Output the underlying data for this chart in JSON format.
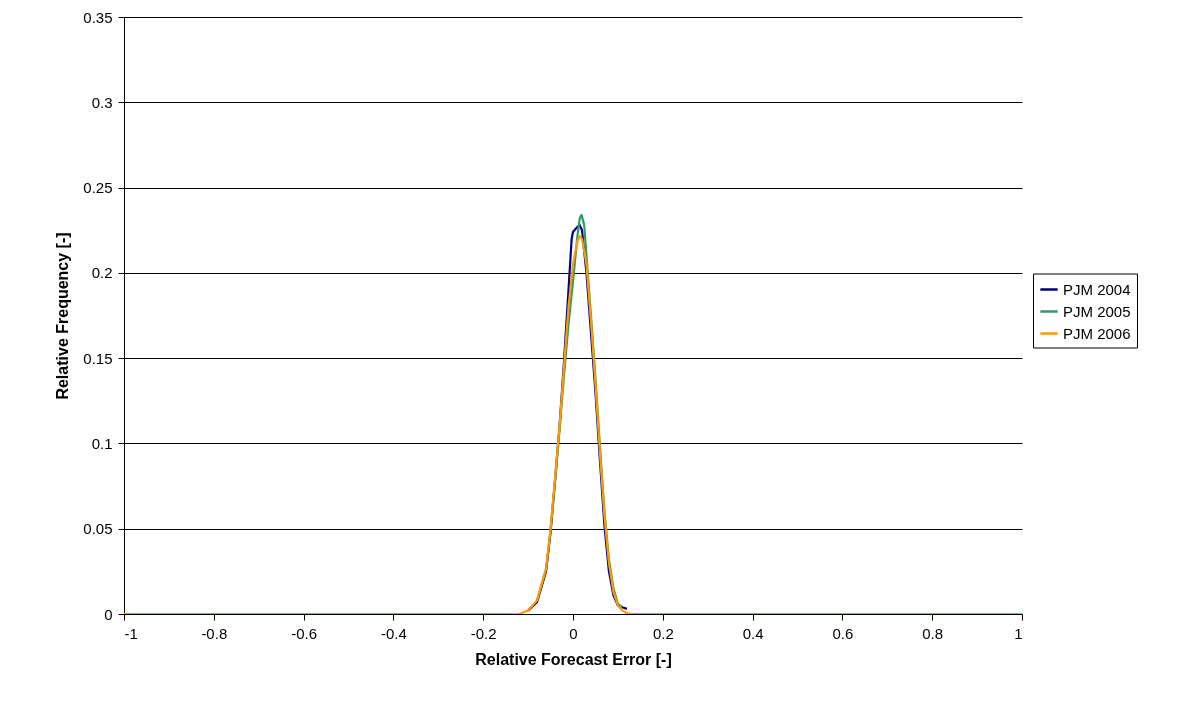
{
  "chart_data": {
    "type": "line",
    "xlabel": "Relative Forecast Error [-]",
    "ylabel": "Relative Frequency [-]",
    "xlim": [
      -1,
      1
    ],
    "xticks": [
      -1,
      -0.8,
      -0.6,
      -0.4,
      -0.2,
      0,
      0.2,
      0.4,
      0.6,
      0.8,
      1
    ],
    "ylim": [
      0,
      0.35
    ],
    "yticks": [
      0,
      0.05,
      0.1,
      0.15,
      0.2,
      0.25,
      0.3,
      0.35
    ],
    "grid": "y",
    "legend": "right",
    "marker": "none",
    "line_style": "solid",
    "series": [
      {
        "name": "PJM 2004",
        "color": "#000080",
        "x": [
          -0.1,
          -0.08,
          -0.06,
          -0.05,
          -0.04,
          -0.03,
          -0.02,
          -0.01,
          -0.003,
          0,
          0.01,
          0.015,
          0.02,
          0.03,
          0.04,
          0.05,
          0.06,
          0.07,
          0.08,
          0.09,
          0.1,
          0.11,
          0.12
        ],
        "values": [
          0.002,
          0.007,
          0.025,
          0.048,
          0.078,
          0.11,
          0.148,
          0.19,
          0.22,
          0.224,
          0.227,
          0.228,
          0.225,
          0.2,
          0.165,
          0.13,
          0.09,
          0.052,
          0.025,
          0.011,
          0.005,
          0.004,
          0.003
        ]
      },
      {
        "name": "PJM 2005",
        "color": "#339966",
        "x": [
          -0.08,
          -0.06,
          -0.05,
          -0.04,
          -0.03,
          -0.02,
          -0.01,
          0,
          0.01,
          0.015,
          0.019,
          0.025,
          0.03,
          0.04,
          0.05,
          0.06,
          0.07,
          0.08,
          0.09,
          0.1,
          0.11
        ],
        "values": [
          0.008,
          0.026,
          0.049,
          0.078,
          0.108,
          0.14,
          0.17,
          0.195,
          0.222,
          0.232,
          0.234,
          0.228,
          0.21,
          0.175,
          0.138,
          0.098,
          0.06,
          0.032,
          0.015,
          0.006,
          0.004
        ]
      },
      {
        "name": "PJM 2006",
        "color": "#ff9900",
        "x": [
          -1,
          -0.15,
          -0.12,
          -0.1,
          -0.08,
          -0.06,
          -0.05,
          -0.04,
          -0.03,
          -0.02,
          -0.01,
          0,
          0.01,
          0.015,
          0.02,
          0.03,
          0.04,
          0.05,
          0.06,
          0.07,
          0.08,
          0.09,
          0.1,
          0.11,
          0.12,
          0.13,
          1
        ],
        "values": [
          0,
          0,
          0,
          0.002,
          0.008,
          0.027,
          0.05,
          0.08,
          0.11,
          0.145,
          0.18,
          0.205,
          0.219,
          0.2215,
          0.22,
          0.205,
          0.172,
          0.135,
          0.095,
          0.058,
          0.03,
          0.013,
          0.005,
          0.002,
          0.0005,
          0,
          0
        ]
      }
    ]
  }
}
